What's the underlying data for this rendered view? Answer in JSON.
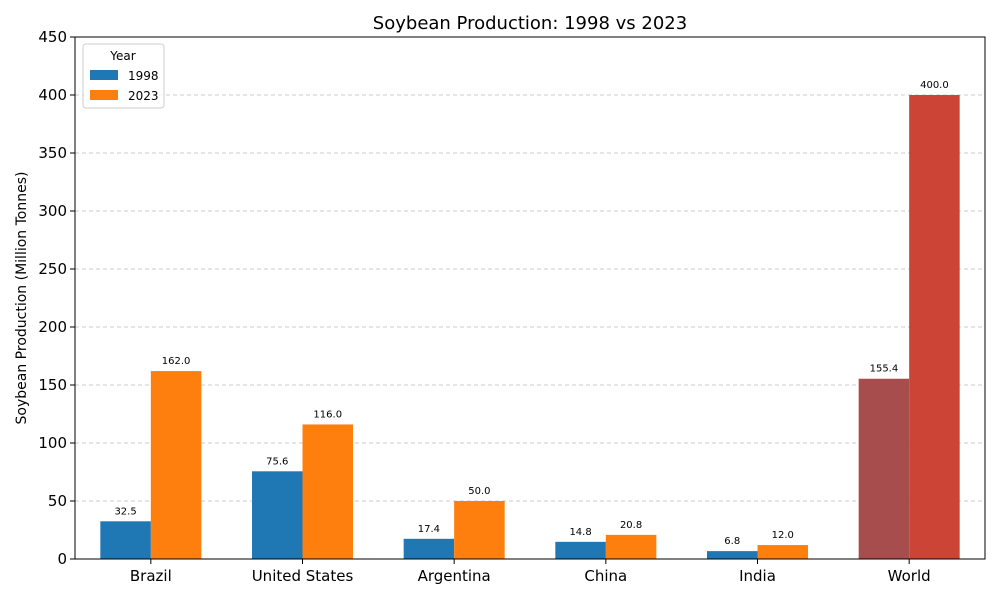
{
  "chart_data": {
    "type": "bar",
    "title": "Soybean Production: 1998 vs 2023",
    "xlabel": "",
    "ylabel": "Soybean Production (Million Tonnes)",
    "categories": [
      "Brazil",
      "United States",
      "Argentina",
      "China",
      "India",
      "World"
    ],
    "series": [
      {
        "name": "1998",
        "color": "#1f77b4",
        "values": [
          32.5,
          75.6,
          17.4,
          14.8,
          6.8,
          155.4
        ],
        "value_labels": [
          "32.5",
          "75.6",
          "17.4",
          "14.8",
          "6.8",
          "155.4"
        ]
      },
      {
        "name": "2023",
        "color": "#ff7f0e",
        "values": [
          162.0,
          116.0,
          50.0,
          20.8,
          12.0,
          400.0
        ],
        "value_labels": [
          "162.0",
          "116.0",
          "50.0",
          "20.8",
          "12.0",
          "400.0"
        ]
      }
    ],
    "highlight": {
      "category": "World",
      "colors": [
        "#a84d4d",
        "#cc4436"
      ]
    },
    "ylim": [
      0,
      450
    ],
    "yticks": [
      0,
      50,
      100,
      150,
      200,
      250,
      300,
      350,
      400,
      450
    ],
    "grid": "horizontal dashed",
    "legend": {
      "title": "Year",
      "placement": "top-left"
    }
  }
}
